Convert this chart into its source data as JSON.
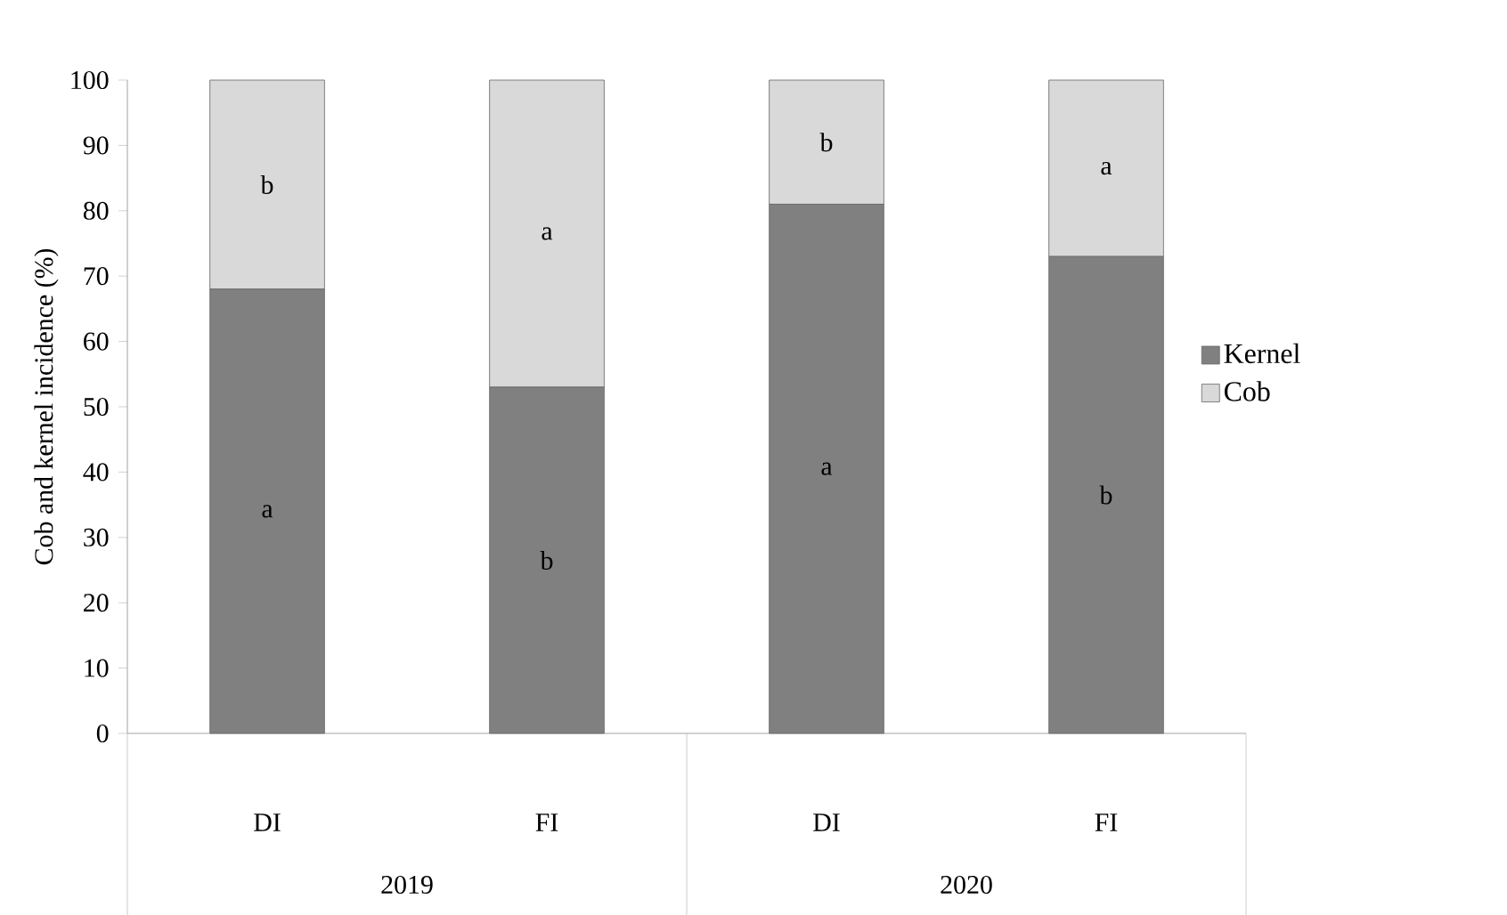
{
  "chart_data": {
    "type": "bar",
    "stacked": true,
    "ylabel": "Cob and kernel incidence (%)",
    "categories": [
      "DI",
      "FI",
      "DI",
      "FI"
    ],
    "series": [
      {
        "name": "Kernel",
        "color": "#808080",
        "values": [
          68,
          53,
          81,
          73
        ],
        "value_labels": [
          "a",
          "b",
          "a",
          "b"
        ]
      },
      {
        "name": "Cob",
        "color": "#d9d9d9",
        "values": [
          32,
          47,
          19,
          27
        ],
        "value_labels": [
          "b",
          "a",
          "b",
          "a"
        ]
      }
    ],
    "annotations": [
      "2019",
      "2020"
    ],
    "ylim": [
      0,
      100
    ],
    "yticks": [
      0,
      10,
      20,
      30,
      40,
      50,
      60,
      70,
      80,
      90,
      100
    ],
    "grid": false,
    "legend": "right"
  }
}
